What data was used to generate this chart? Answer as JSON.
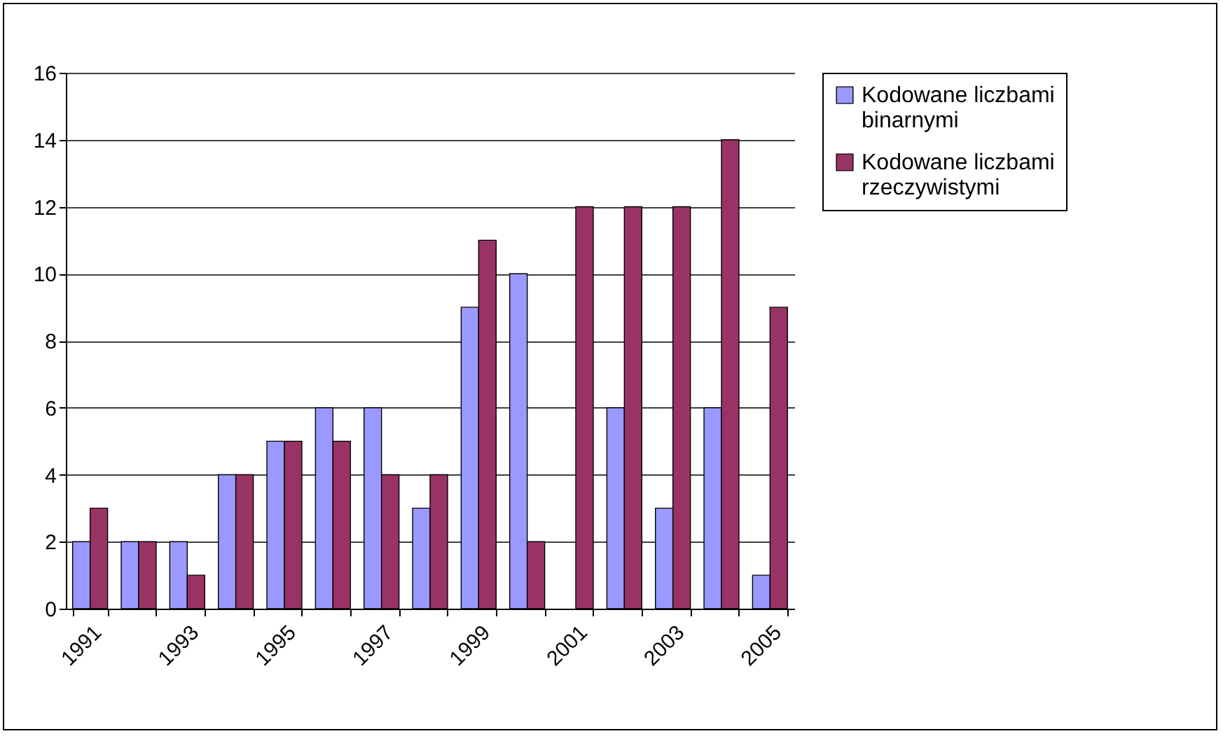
{
  "chart_data": {
    "type": "bar",
    "categories": [
      "1991",
      null,
      "1993",
      null,
      "1995",
      null,
      "1997",
      null,
      "1999",
      null,
      "2001",
      null,
      "2003",
      null,
      "2005"
    ],
    "series": [
      {
        "name": "Kodowane liczbami binarnymi",
        "color": "#9999ff",
        "values": [
          2,
          2,
          2,
          4,
          5,
          6,
          6,
          3,
          9,
          10,
          0,
          6,
          3,
          6,
          1
        ]
      },
      {
        "name": "Kodowane liczbami rzeczywistymi",
        "color": "#993366",
        "values": [
          3,
          2,
          1,
          4,
          5,
          5,
          4,
          4,
          11,
          2,
          12,
          12,
          12,
          14,
          9
        ]
      }
    ],
    "ylim": [
      0,
      16
    ],
    "yticks": [
      0,
      2,
      4,
      6,
      8,
      10,
      12,
      14,
      16
    ],
    "grid": "y",
    "legend": "right"
  }
}
